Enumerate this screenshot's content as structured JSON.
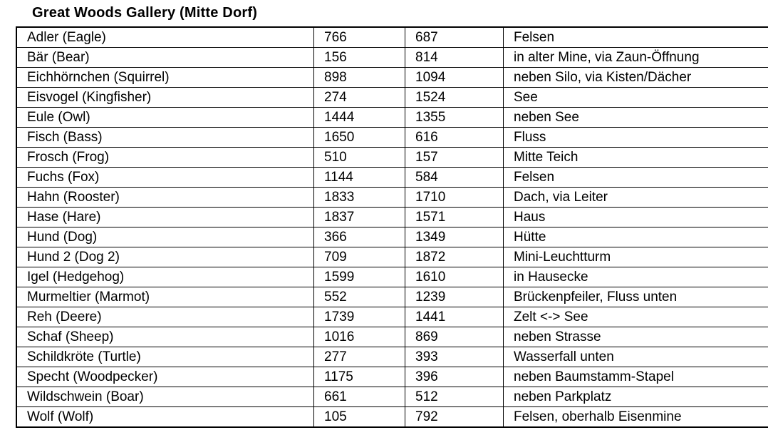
{
  "title": "Great Woods Gallery (Mitte Dorf)",
  "table": {
    "rows": [
      {
        "name": "Adler (Eagle)",
        "x": "766",
        "y": "687",
        "location": "Felsen"
      },
      {
        "name": "Bär (Bear)",
        "x": "156",
        "y": "814",
        "location": "in alter Mine, via Zaun-Öffnung"
      },
      {
        "name": "Eichhörnchen (Squirrel)",
        "x": "898",
        "y": "1094",
        "location": "neben Silo, via Kisten/Dächer"
      },
      {
        "name": "Eisvogel (Kingfisher)",
        "x": "274",
        "y": "1524",
        "location": "See"
      },
      {
        "name": "Eule (Owl)",
        "x": "1444",
        "y": "1355",
        "location": "neben See"
      },
      {
        "name": "Fisch (Bass)",
        "x": "1650",
        "y": "616",
        "location": "Fluss"
      },
      {
        "name": "Frosch (Frog)",
        "x": "510",
        "y": "157",
        "location": "Mitte Teich"
      },
      {
        "name": "Fuchs (Fox)",
        "x": "1144",
        "y": "584",
        "location": "Felsen"
      },
      {
        "name": "Hahn (Rooster)",
        "x": "1833",
        "y": "1710",
        "location": "Dach, via Leiter"
      },
      {
        "name": "Hase (Hare)",
        "x": "1837",
        "y": "1571",
        "location": "Haus"
      },
      {
        "name": "Hund (Dog)",
        "x": "366",
        "y": "1349",
        "location": "Hütte"
      },
      {
        "name": "Hund 2 (Dog 2)",
        "x": "709",
        "y": "1872",
        "location": "Mini-Leuchtturm"
      },
      {
        "name": "Igel (Hedgehog)",
        "x": "1599",
        "y": "1610",
        "location": "in Hausecke"
      },
      {
        "name": "Murmeltier (Marmot)",
        "x": "552",
        "y": "1239",
        "location": "Brückenpfeiler, Fluss unten"
      },
      {
        "name": "Reh (Deere)",
        "x": "1739",
        "y": "1441",
        "location": "Zelt <-> See"
      },
      {
        "name": "Schaf (Sheep)",
        "x": "1016",
        "y": "869",
        "location": "neben Strasse"
      },
      {
        "name": "Schildkröte (Turtle)",
        "x": "277",
        "y": "393",
        "location": "Wasserfall unten"
      },
      {
        "name": "Specht (Woodpecker)",
        "x": "1175",
        "y": "396",
        "location": "neben Baumstamm-Stapel"
      },
      {
        "name": "Wildschwein (Boar)",
        "x": "661",
        "y": "512",
        "location": "neben Parkplatz"
      },
      {
        "name": "Wolf (Wolf)",
        "x": "105",
        "y": "792",
        "location": "Felsen, oberhalb Eisenmine"
      }
    ]
  }
}
